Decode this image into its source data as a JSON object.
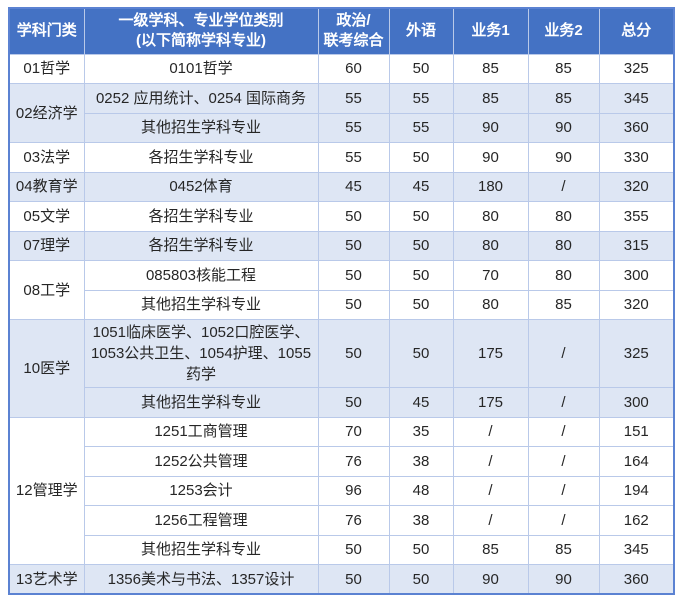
{
  "table": {
    "columns": [
      {
        "key": "category",
        "label": "学科门类"
      },
      {
        "key": "major",
        "label": "一级学科、专业学位类别\n(以下简称学科专业)"
      },
      {
        "key": "politics",
        "label": "政治/\n联考综合"
      },
      {
        "key": "foreign",
        "label": "外语"
      },
      {
        "key": "business1",
        "label": "业务1"
      },
      {
        "key": "business2",
        "label": "业务2"
      },
      {
        "key": "total",
        "label": "总分"
      }
    ],
    "groups": [
      {
        "category": "01哲学",
        "shaded": false,
        "rows": [
          {
            "major": "0101哲学",
            "politics": "60",
            "foreign": "50",
            "business1": "85",
            "business2": "85",
            "total": "325"
          }
        ]
      },
      {
        "category": "02经济学",
        "shaded": true,
        "rows": [
          {
            "major": "0252 应用统计、0254 国际商务",
            "politics": "55",
            "foreign": "55",
            "business1": "85",
            "business2": "85",
            "total": "345"
          },
          {
            "major": "其他招生学科专业",
            "politics": "55",
            "foreign": "55",
            "business1": "90",
            "business2": "90",
            "total": "360"
          }
        ]
      },
      {
        "category": "03法学",
        "shaded": false,
        "rows": [
          {
            "major": "各招生学科专业",
            "politics": "55",
            "foreign": "50",
            "business1": "90",
            "business2": "90",
            "total": "330"
          }
        ]
      },
      {
        "category": "04教育学",
        "shaded": true,
        "rows": [
          {
            "major": "0452体育",
            "politics": "45",
            "foreign": "45",
            "business1": "180",
            "business2": "/",
            "total": "320"
          }
        ]
      },
      {
        "category": "05文学",
        "shaded": false,
        "rows": [
          {
            "major": "各招生学科专业",
            "politics": "50",
            "foreign": "50",
            "business1": "80",
            "business2": "80",
            "total": "355"
          }
        ]
      },
      {
        "category": "07理学",
        "shaded": true,
        "rows": [
          {
            "major": "各招生学科专业",
            "politics": "50",
            "foreign": "50",
            "business1": "80",
            "business2": "80",
            "total": "315"
          }
        ]
      },
      {
        "category": "08工学",
        "shaded": false,
        "rows": [
          {
            "major": "085803核能工程",
            "politics": "50",
            "foreign": "50",
            "business1": "70",
            "business2": "80",
            "total": "300"
          },
          {
            "major": "其他招生学科专业",
            "politics": "50",
            "foreign": "50",
            "business1": "80",
            "business2": "85",
            "total": "320"
          }
        ]
      },
      {
        "category": "10医学",
        "shaded": true,
        "rows": [
          {
            "major": "1051临床医学、1052口腔医学、1053公共卫生、1054护理、1055药学",
            "politics": "50",
            "foreign": "50",
            "business1": "175",
            "business2": "/",
            "total": "325"
          },
          {
            "major": "其他招生学科专业",
            "politics": "50",
            "foreign": "45",
            "business1": "175",
            "business2": "/",
            "total": "300"
          }
        ]
      },
      {
        "category": "12管理学",
        "shaded": false,
        "rows": [
          {
            "major": "1251工商管理",
            "politics": "70",
            "foreign": "35",
            "business1": "/",
            "business2": "/",
            "total": "151"
          },
          {
            "major": "1252公共管理",
            "politics": "76",
            "foreign": "38",
            "business1": "/",
            "business2": "/",
            "total": "164"
          },
          {
            "major": "1253会计",
            "politics": "96",
            "foreign": "48",
            "business1": "/",
            "business2": "/",
            "total": "194"
          },
          {
            "major": "1256工程管理",
            "politics": "76",
            "foreign": "38",
            "business1": "/",
            "business2": "/",
            "total": "162"
          },
          {
            "major": "其他招生学科专业",
            "politics": "50",
            "foreign": "50",
            "business1": "85",
            "business2": "85",
            "total": "345"
          }
        ]
      },
      {
        "category": "13艺术学",
        "shaded": true,
        "rows": [
          {
            "major": "1356美术与书法、1357设计",
            "politics": "50",
            "foreign": "50",
            "business1": "90",
            "business2": "90",
            "total": "360"
          }
        ]
      }
    ]
  },
  "colors": {
    "header_bg": "#4472c4",
    "header_text": "#ffffff",
    "outer_border": "#5b82d2",
    "border": "#b9c9e9",
    "shaded_row_bg": "#dee6f4",
    "white_row_bg": "#ffffff",
    "body_text": "#262626"
  }
}
